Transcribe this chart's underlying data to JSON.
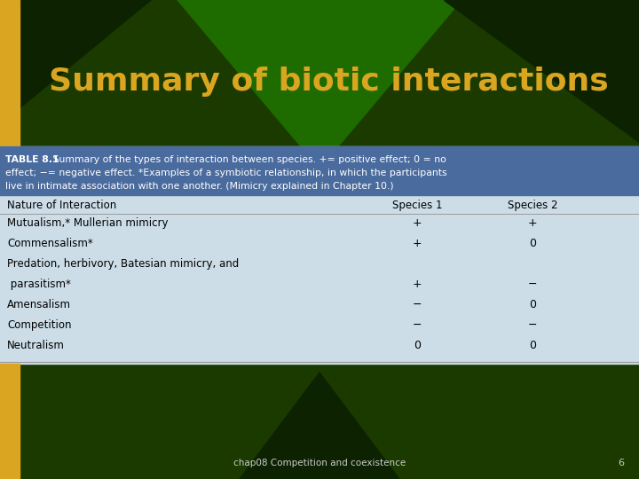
{
  "title": "Summary of biotic interactions",
  "title_color": "#DAA520",
  "slide_bg_color": "#1a3a00",
  "dark_triangle_color": "#0d2200",
  "bright_green_color": "#1e6b00",
  "gold_color": "#DAA520",
  "table_caption_bold": "TABLE 8.1",
  "table_caption_rest": " Summary of the types of interaction between species. += positive effect; 0 = no",
  "table_caption_line2": "effect; −= negative effect. *Examples of a symbiotic relationship, in which the participants",
  "table_caption_line3": "live in intimate association with one another. (Mimicry explained in Chapter 10.)",
  "table_header": [
    "Nature of Interaction",
    "Species 1",
    "Species 2"
  ],
  "table_rows": [
    [
      "Mutualism,* Mullerian mimicry",
      "+",
      "+"
    ],
    [
      "Commensalism*",
      "+",
      "0"
    ],
    [
      "Predation, herbivory, Batesian mimicry, and",
      "",
      ""
    ],
    [
      " parasitism*",
      "+",
      "−"
    ],
    [
      "Amensalism",
      "−",
      "0"
    ],
    [
      "Competition",
      "−",
      "−"
    ],
    [
      "Neutralism",
      "0",
      "0"
    ]
  ],
  "caption_bg_color": "#4a6b9e",
  "table_bg_color": "#ccdde8",
  "footer_text": "chap08 Competition and coexistence",
  "footer_number": "6",
  "footer_color": "#cccccc"
}
